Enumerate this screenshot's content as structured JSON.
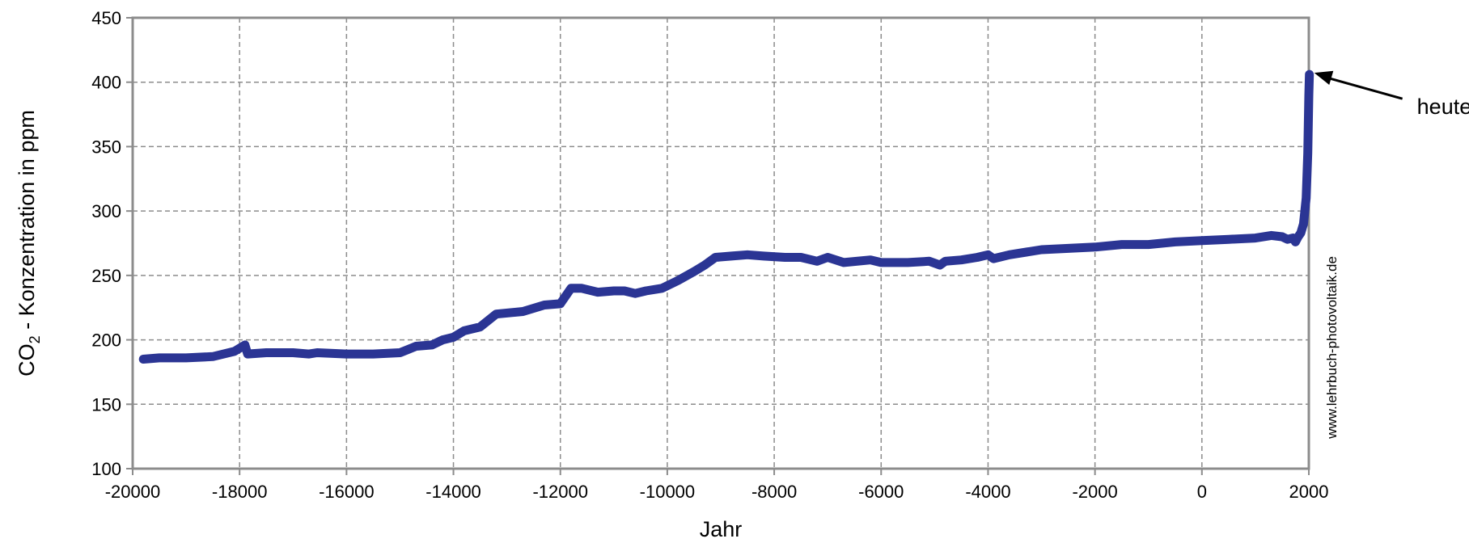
{
  "chart_data": {
    "type": "line",
    "title": "",
    "xlabel": "Jahr",
    "ylabel_main": "CO",
    "ylabel_sub": "2",
    "ylabel_rest": " - Konzentration  in ppm",
    "xlim": [
      -20000,
      2000
    ],
    "ylim": [
      100,
      450
    ],
    "x_ticks": [
      -20000,
      -18000,
      -16000,
      -14000,
      -12000,
      -10000,
      -8000,
      -6000,
      -4000,
      -2000,
      0,
      2000
    ],
    "y_ticks": [
      100,
      150,
      200,
      250,
      300,
      350,
      400,
      450
    ],
    "grid": true,
    "series_color": "#2b3594",
    "series": [
      {
        "x": [
          -19800,
          -19500,
          -19000,
          -18500,
          -18100,
          -17900,
          -17850,
          -17500,
          -17000,
          -16700,
          -16550,
          -16000,
          -15500,
          -15000,
          -14700,
          -14400,
          -14200,
          -14000,
          -13800,
          -13500,
          -13200,
          -12700,
          -12300,
          -12000,
          -11800,
          -11600,
          -11300,
          -11000,
          -10800,
          -10600,
          -10400,
          -10100,
          -9800,
          -9500,
          -9300,
          -9100,
          -8800,
          -8500,
          -8200,
          -7800,
          -7500,
          -7200,
          -7000,
          -6700,
          -6200,
          -6000,
          -5500,
          -5100,
          -4900,
          -4800,
          -4500,
          -4200,
          -4000,
          -3900,
          -3600,
          -3000,
          -2500,
          -2000,
          -1500,
          -1000,
          -500,
          0,
          500,
          1000,
          1300,
          1500,
          1600,
          1700,
          1750,
          1800,
          1850,
          1900,
          1950,
          1980,
          2000,
          2010
        ],
        "y": [
          185,
          186,
          186,
          187,
          191,
          196,
          189,
          190,
          190,
          189,
          190,
          189,
          189,
          190,
          195,
          196,
          200,
          202,
          207,
          210,
          220,
          222,
          227,
          228,
          240,
          240,
          237,
          238,
          238,
          236,
          238,
          240,
          246,
          253,
          258,
          264,
          265,
          266,
          265,
          264,
          264,
          261,
          264,
          260,
          262,
          260,
          260,
          261,
          258,
          261,
          262,
          264,
          266,
          263,
          266,
          270,
          271,
          272,
          274,
          274,
          276,
          277,
          278,
          279,
          281,
          280,
          278,
          279,
          276,
          280,
          283,
          290,
          310,
          345,
          390,
          406
        ]
      }
    ],
    "annotations": [
      {
        "text": "heute",
        "x": 2010,
        "y": 406
      }
    ],
    "source_note": "www.lehrbuch-photovoltaik.de"
  }
}
